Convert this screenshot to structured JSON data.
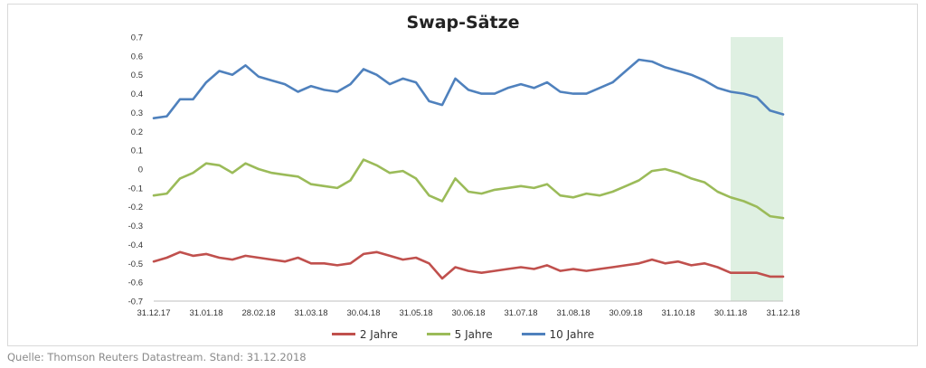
{
  "source_note": "Quelle: Thomson Reuters Datastream. Stand: 31.12.2018",
  "chart_data": {
    "type": "line",
    "title": "Swap-Sätze",
    "xlabel": "",
    "ylabel": "",
    "ylim": [
      -0.7,
      0.7
    ],
    "yticks": [
      "0.7",
      "0.6",
      "0.5",
      "0.4",
      "0.3",
      "0.2",
      "0.1",
      "0",
      "-0.1",
      "-0.2",
      "-0.3",
      "-0.4",
      "-0.5",
      "-0.6",
      "-0.7"
    ],
    "x_ticks": [
      "31.12.17",
      "31.01.18",
      "28.02.18",
      "31.03.18",
      "30.04.18",
      "31.05.18",
      "30.06.18",
      "31.07.18",
      "31.08.18",
      "30.09.18",
      "31.10.18",
      "30.11.18",
      "31.12.18"
    ],
    "highlight_region": {
      "from": "30.11.18",
      "to": "31.12.18",
      "color": "#dff0e2"
    },
    "legend_position": "bottom",
    "grid": false,
    "series": [
      {
        "name": "2 Jahre",
        "color": "#c0504d",
        "values": [
          -0.49,
          -0.47,
          -0.44,
          -0.46,
          -0.45,
          -0.47,
          -0.48,
          -0.46,
          -0.47,
          -0.48,
          -0.49,
          -0.47,
          -0.5,
          -0.5,
          -0.51,
          -0.5,
          -0.45,
          -0.44,
          -0.46,
          -0.48,
          -0.47,
          -0.5,
          -0.58,
          -0.52,
          -0.54,
          -0.55,
          -0.54,
          -0.53,
          -0.52,
          -0.53,
          -0.51,
          -0.54,
          -0.53,
          -0.54,
          -0.53,
          -0.52,
          -0.51,
          -0.5,
          -0.48,
          -0.5,
          -0.49,
          -0.51,
          -0.5,
          -0.52,
          -0.55,
          -0.55,
          -0.55,
          -0.57,
          -0.57
        ]
      },
      {
        "name": "5 Jahre",
        "color": "#9bbb59",
        "values": [
          -0.14,
          -0.13,
          -0.05,
          -0.02,
          0.03,
          0.02,
          -0.02,
          0.03,
          0.0,
          -0.02,
          -0.03,
          -0.04,
          -0.08,
          -0.09,
          -0.1,
          -0.06,
          0.05,
          0.02,
          -0.02,
          -0.01,
          -0.05,
          -0.14,
          -0.17,
          -0.05,
          -0.12,
          -0.13,
          -0.11,
          -0.1,
          -0.09,
          -0.1,
          -0.08,
          -0.14,
          -0.15,
          -0.13,
          -0.14,
          -0.12,
          -0.09,
          -0.06,
          -0.01,
          0.0,
          -0.02,
          -0.05,
          -0.07,
          -0.12,
          -0.15,
          -0.17,
          -0.2,
          -0.25,
          -0.26
        ]
      },
      {
        "name": "10 Jahre",
        "color": "#4f81bd",
        "values": [
          0.27,
          0.28,
          0.37,
          0.37,
          0.46,
          0.52,
          0.5,
          0.55,
          0.49,
          0.47,
          0.45,
          0.41,
          0.44,
          0.42,
          0.41,
          0.45,
          0.53,
          0.5,
          0.45,
          0.48,
          0.46,
          0.36,
          0.34,
          0.48,
          0.42,
          0.4,
          0.4,
          0.43,
          0.45,
          0.43,
          0.46,
          0.41,
          0.4,
          0.4,
          0.43,
          0.46,
          0.52,
          0.58,
          0.57,
          0.54,
          0.52,
          0.5,
          0.47,
          0.43,
          0.41,
          0.4,
          0.38,
          0.31,
          0.29
        ]
      }
    ]
  }
}
